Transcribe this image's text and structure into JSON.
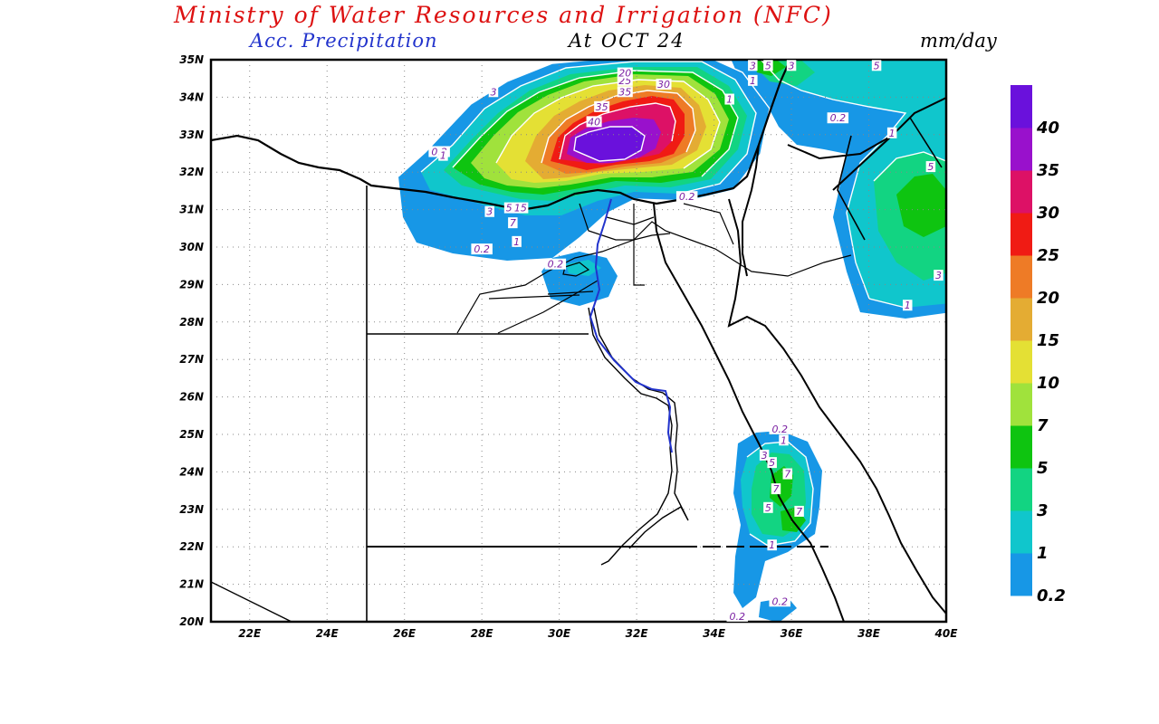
{
  "header": {
    "title": "Ministry of Water Resources and Irrigation (NFC)",
    "subtitle": "Acc. Precipitation",
    "date": "At OCT 24",
    "units": "mm/day"
  },
  "colors": {
    "title": "#dd1111",
    "subtitle": "#2233cc"
  },
  "map": {
    "lon_range": [
      21,
      40
    ],
    "lat_range": [
      20,
      35
    ],
    "lat_labels": [
      "20N",
      "21N",
      "22N",
      "23N",
      "24N",
      "25N",
      "26N",
      "27N",
      "28N",
      "29N",
      "30N",
      "31N",
      "32N",
      "33N",
      "34N",
      "35N"
    ],
    "lon_labels": [
      "22E",
      "24E",
      "26E",
      "28E",
      "30E",
      "32E",
      "34E",
      "36E",
      "38E",
      "40E"
    ],
    "grid": "dotted"
  },
  "legend": {
    "levels": [
      {
        "label": "0.2",
        "color": "#1797e6"
      },
      {
        "label": "1",
        "color": "#10c6cc"
      },
      {
        "label": "3",
        "color": "#12d482"
      },
      {
        "label": "5",
        "color": "#0ec410"
      },
      {
        "label": "7",
        "color": "#a0e23c"
      },
      {
        "label": "10",
        "color": "#e4e034"
      },
      {
        "label": "15",
        "color": "#e4ac33"
      },
      {
        "label": "20",
        "color": "#ee7b26"
      },
      {
        "label": "25",
        "color": "#f01b14"
      },
      {
        "label": "30",
        "color": "#dd1166"
      },
      {
        "label": "35",
        "color": "#9911cc"
      },
      {
        "label": "40",
        "color": "#6a11dc"
      }
    ]
  },
  "contour_labels": [
    {
      "text": "0.2",
      "lon": 26.9,
      "lat": 32.5
    },
    {
      "text": "1",
      "lon": 27.0,
      "lat": 32.4
    },
    {
      "text": "3",
      "lon": 28.3,
      "lat": 34.1
    },
    {
      "text": "40",
      "lon": 30.9,
      "lat": 33.3
    },
    {
      "text": "35",
      "lon": 31.1,
      "lat": 33.7
    },
    {
      "text": "35",
      "lon": 31.7,
      "lat": 34.1
    },
    {
      "text": "30",
      "lon": 32.7,
      "lat": 34.3
    },
    {
      "text": "25",
      "lon": 31.7,
      "lat": 34.4
    },
    {
      "text": "20",
      "lon": 31.7,
      "lat": 34.6
    },
    {
      "text": "15",
      "lon": 29.0,
      "lat": 31.0
    },
    {
      "text": "5",
      "lon": 28.7,
      "lat": 31.0
    },
    {
      "text": "7",
      "lon": 28.8,
      "lat": 30.6
    },
    {
      "text": "3",
      "lon": 28.2,
      "lat": 30.9
    },
    {
      "text": "0.2",
      "lon": 28.0,
      "lat": 29.9
    },
    {
      "text": "1",
      "lon": 28.9,
      "lat": 30.1
    },
    {
      "text": "0.2",
      "lon": 29.9,
      "lat": 29.5
    },
    {
      "text": "0.2",
      "lon": 33.3,
      "lat": 31.3
    },
    {
      "text": "1",
      "lon": 34.4,
      "lat": 33.9
    },
    {
      "text": "1",
      "lon": 35.0,
      "lat": 34.4
    },
    {
      "text": "3",
      "lon": 35.0,
      "lat": 34.8
    },
    {
      "text": "5",
      "lon": 35.4,
      "lat": 34.8
    },
    {
      "text": "3",
      "lon": 36.0,
      "lat": 34.8
    },
    {
      "text": "5",
      "lon": 38.2,
      "lat": 34.8
    },
    {
      "text": "0.2",
      "lon": 37.2,
      "lat": 33.4
    },
    {
      "text": "1",
      "lon": 38.6,
      "lat": 33.0
    },
    {
      "text": "5",
      "lon": 39.6,
      "lat": 32.1
    },
    {
      "text": "3",
      "lon": 39.8,
      "lat": 29.2
    },
    {
      "text": "1",
      "lon": 39.0,
      "lat": 28.4
    },
    {
      "text": "0.2",
      "lon": 35.7,
      "lat": 25.1
    },
    {
      "text": "1",
      "lon": 35.8,
      "lat": 24.8
    },
    {
      "text": "3",
      "lon": 35.3,
      "lat": 24.4
    },
    {
      "text": "5",
      "lon": 35.5,
      "lat": 24.2
    },
    {
      "text": "7",
      "lon": 35.9,
      "lat": 23.9
    },
    {
      "text": "7",
      "lon": 35.6,
      "lat": 23.5
    },
    {
      "text": "5",
      "lon": 35.4,
      "lat": 23.0
    },
    {
      "text": "7",
      "lon": 36.2,
      "lat": 22.9
    },
    {
      "text": "1",
      "lon": 35.5,
      "lat": 22.0
    },
    {
      "text": "0.2",
      "lon": 35.7,
      "lat": 20.5
    },
    {
      "text": "0.2",
      "lon": 34.6,
      "lat": 20.1
    }
  ]
}
